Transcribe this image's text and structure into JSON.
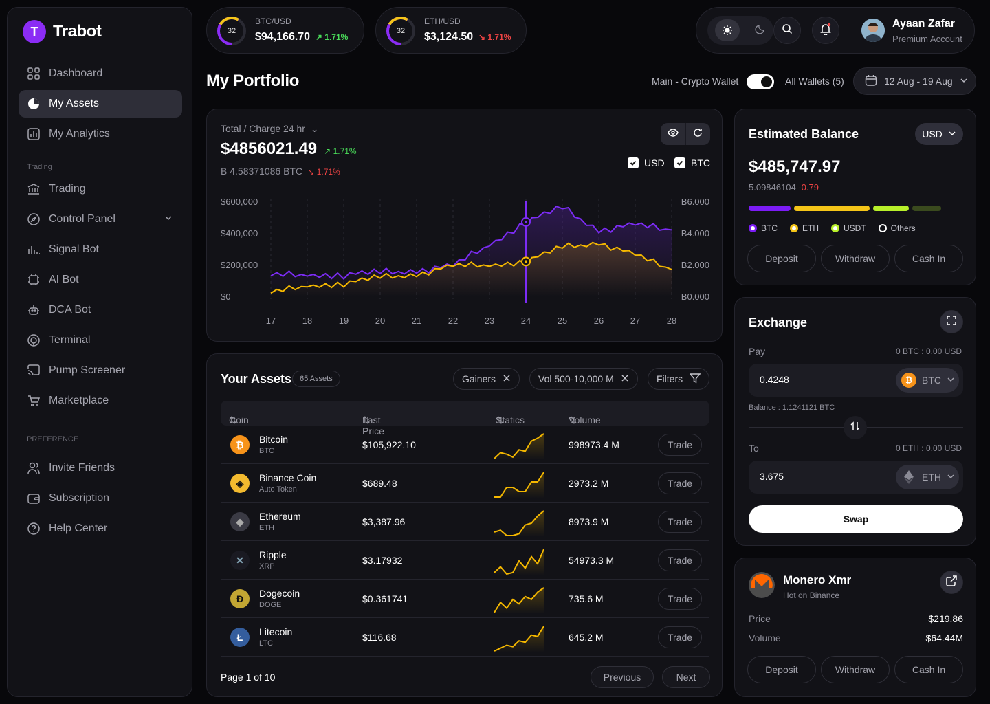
{
  "brand": {
    "name": "Trabot",
    "mark": "T"
  },
  "sidebar": {
    "items": [
      {
        "label": "Dashboard",
        "icon": "grid-icon"
      },
      {
        "label": "My Assets",
        "icon": "pie-icon",
        "active": true
      },
      {
        "label": "My Analytics",
        "icon": "chart-icon"
      }
    ],
    "trading_section": "Trading",
    "trading_items": [
      {
        "label": "Trading",
        "icon": "bank-icon"
      },
      {
        "label": "Control Panel",
        "icon": "compass-icon"
      },
      {
        "label": "Signal Bot",
        "icon": "signal-icon"
      },
      {
        "label": "AI Bot",
        "icon": "chip-icon"
      },
      {
        "label": "DCA Bot",
        "icon": "robot-icon"
      },
      {
        "label": "Terminal",
        "icon": "terminal-icon"
      },
      {
        "label": "Pump Screener",
        "icon": "cast-icon"
      },
      {
        "label": "Marketplace",
        "icon": "cart-icon"
      }
    ],
    "preference_section": "PREFERENCE",
    "preference_items": [
      {
        "label": "Invite Friends",
        "icon": "users-icon"
      },
      {
        "label": "Subscription",
        "icon": "wallet-icon"
      },
      {
        "label": "Help Center",
        "icon": "help-icon"
      }
    ]
  },
  "tickers": [
    {
      "pct": "32",
      "pair": "BTC/USD",
      "price": "$94,166.70",
      "change": "1.71%",
      "dir": "up"
    },
    {
      "pct": "32",
      "pair": "ETH/USD",
      "price": "$3,124.50",
      "change": "1.71%",
      "dir": "down"
    }
  ],
  "user": {
    "name": "Ayaan Zafar",
    "role": "Premium Account"
  },
  "page": {
    "title": "My Portfolio",
    "wallet_main": "Main - Crypto Wallet",
    "wallet_all": "All Wallets (5)",
    "date_range": "12 Aug - 19 Aug"
  },
  "summary": {
    "label": "Total / Charge 24 hr",
    "total": "$4856021.49",
    "total_change": "1.71%",
    "btc_total": "B 4.58371086 BTC",
    "btc_change": "1.71%",
    "toggle_usd": "USD",
    "toggle_btc": "BTC"
  },
  "chart_data": {
    "type": "line",
    "x": [
      17,
      18,
      19,
      20,
      21,
      22,
      23,
      24,
      25,
      26,
      27,
      28
    ],
    "y_left_ticks": [
      "$600,000",
      "$400,000",
      "$200,000",
      "$0"
    ],
    "y_right_ticks": [
      "B6.000",
      "B4.000",
      "B2.000",
      "B0.000"
    ],
    "ylim_left": [
      0,
      600000
    ],
    "ylim_right": [
      0,
      6
    ],
    "series": [
      {
        "name": "USD",
        "color": "#7c2cf5",
        "values": [
          130000,
          140000,
          135000,
          150000,
          165000,
          190000,
          330000,
          470000,
          560000,
          420000,
          450000,
          420000
        ]
      },
      {
        "name": "BTC",
        "color": "#f5b800",
        "values": [
          0.2,
          0.7,
          0.8,
          1.2,
          1.4,
          1.9,
          2.0,
          2.2,
          3.1,
          3.4,
          2.6,
          1.7
        ]
      }
    ],
    "highlight_x": 24
  },
  "assets": {
    "title": "Your Assets",
    "count": "65 Assets",
    "filters": [
      "Gainers",
      "Vol 500-10,000 M"
    ],
    "filters_label": "Filters",
    "columns": [
      "Coin",
      "Last Price",
      "Statics",
      "Volume"
    ],
    "rows": [
      {
        "name": "Bitcoin",
        "sym": "BTC",
        "price": "$105,922.10",
        "volume": "998973.4 M",
        "icon_char": "₿",
        "color": "#f7931a",
        "fg": "#fff",
        "spark": [
          2,
          6,
          5,
          3,
          8,
          7,
          14,
          16,
          19
        ]
      },
      {
        "name": "Binance Coin",
        "sym": "Auto Token",
        "price": "$689.48",
        "volume": "2973.2 M",
        "icon_char": "◈",
        "color": "#f3ba2f",
        "fg": "#111",
        "spark": [
          1,
          1,
          8,
          8,
          5,
          5,
          12,
          12,
          19
        ]
      },
      {
        "name": "Ethereum",
        "sym": "ETH",
        "price": "$3,387.96",
        "volume": "8973.9 M",
        "icon_char": "◆",
        "color": "#3a3a44",
        "fg": "#aaa",
        "spark": [
          6,
          7,
          4,
          4,
          5,
          10,
          11,
          15,
          18
        ]
      },
      {
        "name": "Ripple",
        "sym": "XRP",
        "price": "$3.17932",
        "volume": "54973.3 M",
        "icon_char": "✕",
        "color": "#1a1a22",
        "fg": "#8ab",
        "spark": [
          3,
          7,
          2,
          3,
          11,
          6,
          14,
          9,
          19
        ]
      },
      {
        "name": "Dogecoin",
        "sym": "DOGE",
        "price": "$0.361741",
        "volume": "735.6 M",
        "icon_char": "Ð",
        "color": "#c2a633",
        "fg": "#111",
        "spark": [
          2,
          9,
          5,
          11,
          8,
          13,
          11,
          16,
          19
        ]
      },
      {
        "name": "Litecoin",
        "sym": "LTC",
        "price": "$116.68",
        "volume": "645.2 M",
        "icon_char": "Ł",
        "color": "#345d9d",
        "fg": "#fff",
        "spark": [
          2,
          4,
          6,
          5,
          9,
          8,
          13,
          12,
          19
        ]
      }
    ],
    "trade_label": "Trade",
    "page_text": "Page 1 of 10",
    "prev": "Previous",
    "next": "Next"
  },
  "balance": {
    "title": "Estimated Balance",
    "currency": "USD",
    "amount": "$485,747.97",
    "sub": "5.09846104",
    "sub_change": "-0.79",
    "allocation": [
      {
        "name": "BTC",
        "color": "#7c1cf5",
        "share": 0.2
      },
      {
        "name": "ETH",
        "color": "#f5c518",
        "share": 0.36
      },
      {
        "name": "USDT",
        "color": "#b8f02a",
        "share": 0.17
      },
      {
        "name": "Others",
        "color": "#3a4a1e",
        "share": 0.14
      }
    ],
    "actions": [
      "Deposit",
      "Withdraw",
      "Cash In"
    ]
  },
  "exchange": {
    "title": "Exchange",
    "pay_label": "Pay",
    "pay_rate": "0 BTC : 0.00 USD",
    "pay_value": "0.4248",
    "pay_coin": "BTC",
    "balance": "Balance : 1.1241121 BTC",
    "to_label": "To",
    "to_rate": "0 ETH : 0.00 USD",
    "to_value": "3.675",
    "to_coin": "ETH",
    "swap": "Swap"
  },
  "hot": {
    "name": "Monero Xmr",
    "sub": "Hot on Binance",
    "price_label": "Price",
    "price": "$219.86",
    "volume_label": "Volume",
    "volume": "$64.44M",
    "actions": [
      "Deposit",
      "Withdraw",
      "Cash In"
    ]
  }
}
